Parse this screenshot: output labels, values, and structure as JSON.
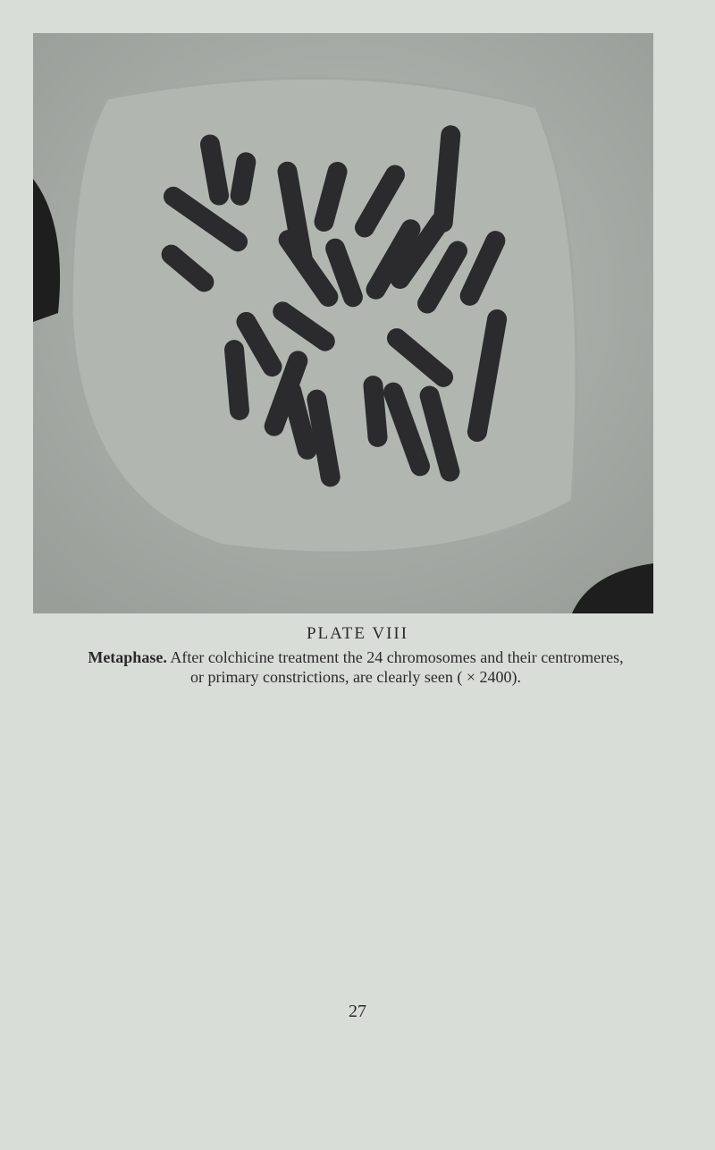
{
  "plate": {
    "label": "PLATE VIII"
  },
  "caption": {
    "lead": "Metaphase.",
    "text": "After colchicine treatment the 24 chromosomes and their centromeres, or primary constrictions, are clearly seen ( × 2400)."
  },
  "page_number": "27"
}
